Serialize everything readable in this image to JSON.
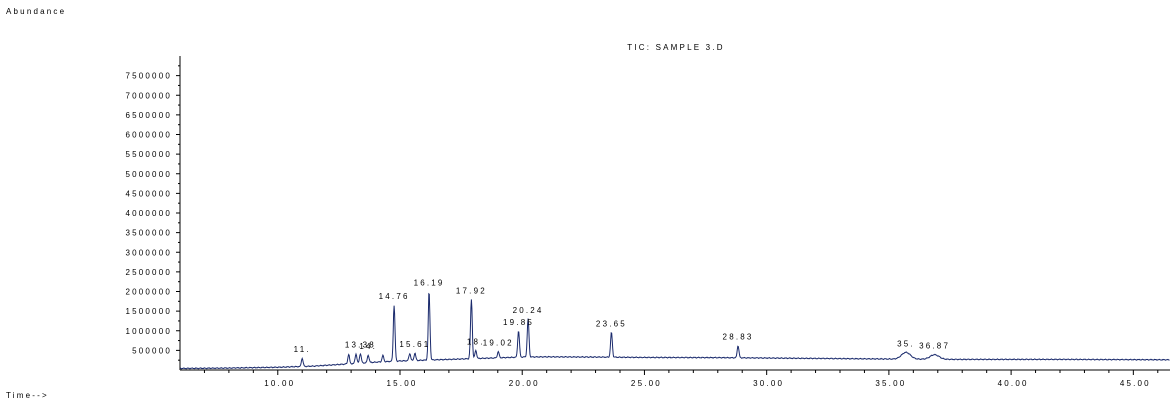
{
  "chart_data": {
    "type": "line",
    "title": "TIC: SAMPLE 3.D",
    "ylabel": "Abundance",
    "xlabel": "Time-->",
    "xlim": [
      6.0,
      46.5
    ],
    "ylim": [
      0,
      8000000
    ],
    "xticks": [
      "10.00",
      "15.00",
      "20.00",
      "25.00",
      "30.00",
      "35.00",
      "40.00",
      "45.00"
    ],
    "yticks": [
      "500000",
      "1000000",
      "1500000",
      "2000000",
      "2500000",
      "3000000",
      "3500000",
      "4000000",
      "4500000",
      "5000000",
      "5500000",
      "6000000",
      "6500000",
      "7000000",
      "7500000"
    ],
    "baseline": [
      [
        6.0,
        40000
      ],
      [
        8.0,
        50000
      ],
      [
        10.0,
        70000
      ],
      [
        11.5,
        100000
      ],
      [
        12.5,
        140000
      ],
      [
        13.0,
        160000
      ],
      [
        14.0,
        200000
      ],
      [
        15.0,
        230000
      ],
      [
        16.0,
        250000
      ],
      [
        17.0,
        270000
      ],
      [
        18.0,
        290000
      ],
      [
        19.0,
        310000
      ],
      [
        20.0,
        330000
      ],
      [
        21.0,
        335000
      ],
      [
        23.0,
        330000
      ],
      [
        25.0,
        320000
      ],
      [
        28.0,
        315000
      ],
      [
        30.0,
        305000
      ],
      [
        35.0,
        280000
      ],
      [
        38.0,
        270000
      ],
      [
        42.0,
        270000
      ],
      [
        46.5,
        260000
      ]
    ],
    "peaks": [
      {
        "time": 11.0,
        "height": 300000,
        "label": "11."
      },
      {
        "time": 12.9,
        "height": 400000,
        "label": ""
      },
      {
        "time": 13.2,
        "height": 410000,
        "label": ""
      },
      {
        "time": 13.38,
        "height": 420000,
        "label": "13.38"
      },
      {
        "time": 13.7,
        "height": 380000,
        "label": "14."
      },
      {
        "time": 14.3,
        "height": 370000,
        "label": ""
      },
      {
        "time": 14.76,
        "height": 1650000,
        "label": "14.76"
      },
      {
        "time": 15.4,
        "height": 420000,
        "label": ""
      },
      {
        "time": 15.61,
        "height": 430000,
        "label": "15.61"
      },
      {
        "time": 16.19,
        "height": 2000000,
        "label": "16.19"
      },
      {
        "time": 17.92,
        "height": 1800000,
        "label": "17.92"
      },
      {
        "time": 18.1,
        "height": 500000,
        "label": "18."
      },
      {
        "time": 19.02,
        "height": 470000,
        "label": "19.02"
      },
      {
        "time": 19.85,
        "height": 1000000,
        "label": "19.85"
      },
      {
        "time": 20.24,
        "height": 1300000,
        "label": "20.24"
      },
      {
        "time": 23.65,
        "height": 960000,
        "label": "23.65"
      },
      {
        "time": 28.83,
        "height": 620000,
        "label": "28.83"
      },
      {
        "time": 35.7,
        "height": 450000,
        "label": "35."
      },
      {
        "time": 36.87,
        "height": 390000,
        "label": "36.87"
      }
    ]
  }
}
